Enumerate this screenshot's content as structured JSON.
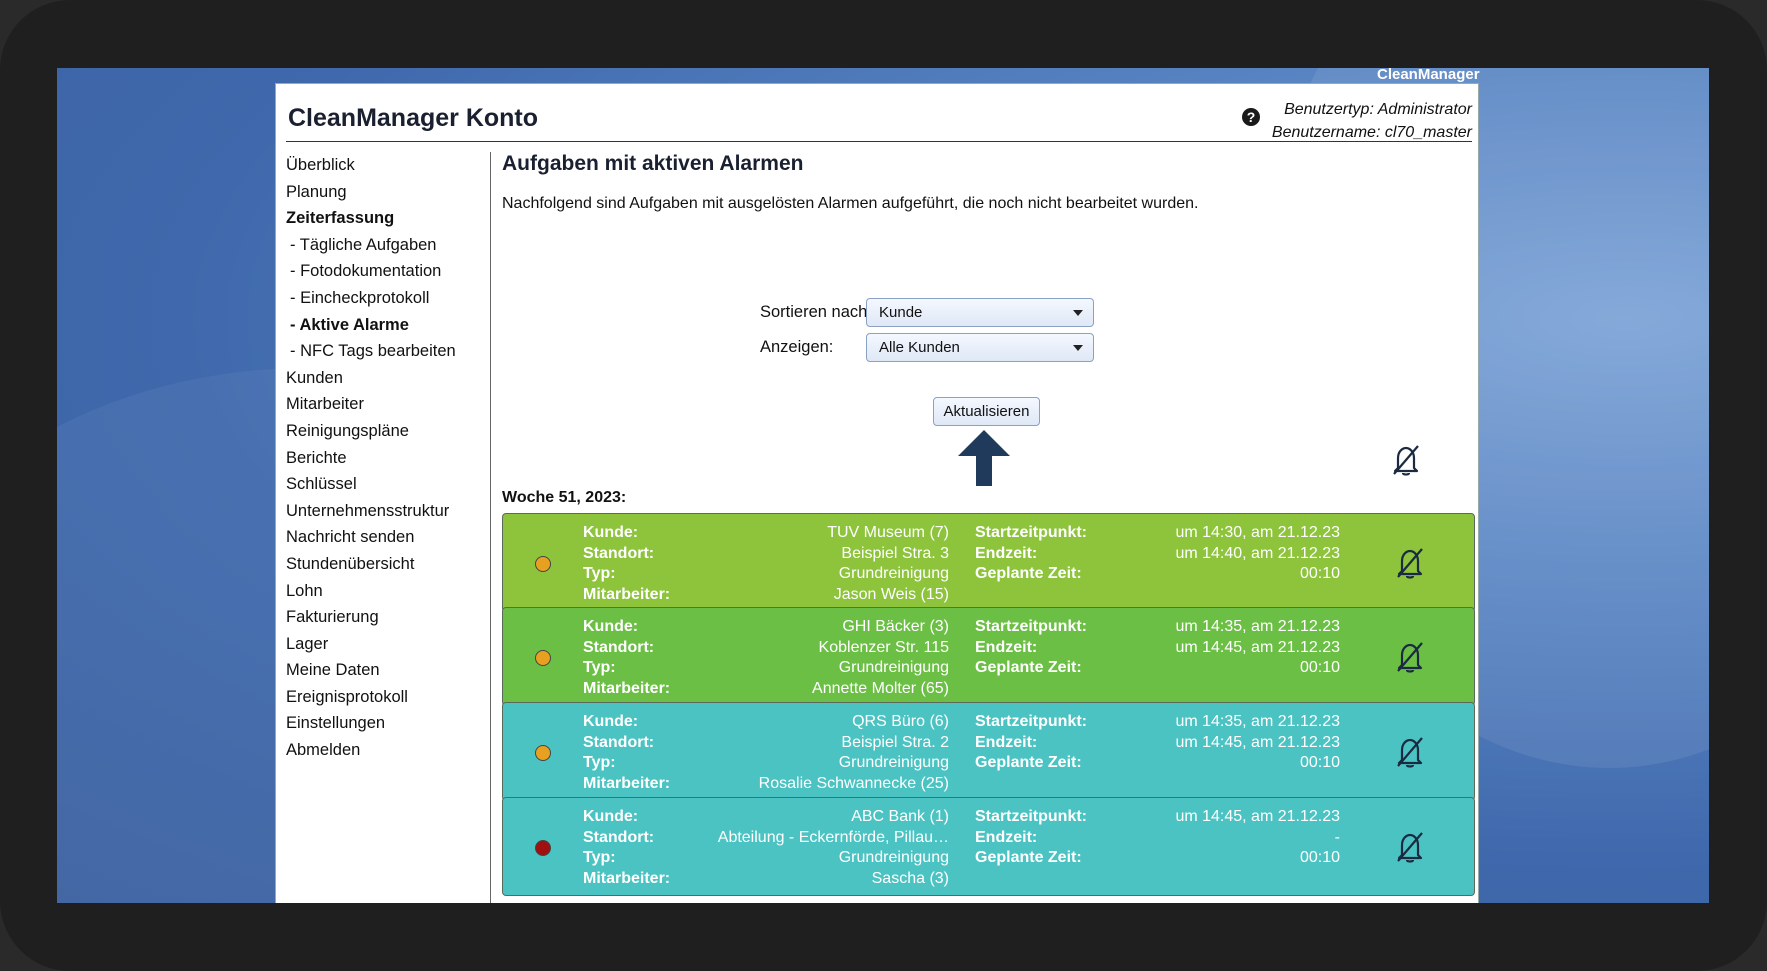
{
  "desktop": {
    "brand": "CleanManager"
  },
  "header": {
    "title": "CleanManager Konto",
    "user_type": "Benutzertyp: Administrator",
    "user_name": "Benutzername: cl70_master"
  },
  "sidebar": {
    "items": [
      {
        "label": "Überblick"
      },
      {
        "label": "Planung"
      },
      {
        "label": "Zeiterfassung"
      },
      {
        "label": "- Tägliche Aufgaben"
      },
      {
        "label": "- Fotodokumentation"
      },
      {
        "label": "- Eincheckprotokoll"
      },
      {
        "label": "- Aktive Alarme"
      },
      {
        "label": "- NFC Tags bearbeiten"
      },
      {
        "label": "Kunden"
      },
      {
        "label": "Mitarbeiter"
      },
      {
        "label": "Reinigungspläne"
      },
      {
        "label": "Berichte"
      },
      {
        "label": "Schlüssel"
      },
      {
        "label": "Unternehmensstruktur"
      },
      {
        "label": "Nachricht senden"
      },
      {
        "label": "Stundenübersicht"
      },
      {
        "label": "Lohn"
      },
      {
        "label": "Fakturierung"
      },
      {
        "label": "Lager"
      },
      {
        "label": "Meine Daten"
      },
      {
        "label": "Ereignisprotokoll"
      },
      {
        "label": "Einstellungen"
      },
      {
        "label": "Abmelden"
      }
    ]
  },
  "main": {
    "title": "Aufgaben mit aktiven Alarmen",
    "intro": "Nachfolgend sind Aufgaben mit ausgelösten Alarmen aufgeführt, die noch nicht bearbeitet wurden.",
    "sort_label": "Sortieren nach:",
    "sort_value": "Kunde",
    "show_label": "Anzeigen:",
    "show_value": "Alle Kunden",
    "refresh_label": "Aktualisieren",
    "week": "Woche 51, 2023:",
    "labels": {
      "kunde": "Kunde:",
      "standort": "Standort:",
      "typ": "Typ:",
      "mitarbeiter": "Mitarbeiter:",
      "start": "Startzeitpunkt:",
      "end": "Endzeit:",
      "planned": "Geplante Zeit:"
    },
    "alarms": [
      {
        "color": "#8dc43c",
        "dot": "#e8a020",
        "kunde": "TUV Museum (7)",
        "standort": "Beispiel Stra. 3",
        "typ": "Grundreinigung",
        "mitarbeiter": "Jason Weis (15)",
        "start": "um 14:30, am 21.12.23",
        "end": "um 14:40, am 21.12.23",
        "planned": "00:10"
      },
      {
        "color": "#6cbf45",
        "dot": "#e8a020",
        "kunde": "GHI Bäcker (3)",
        "standort": "Koblenzer Str. 115",
        "typ": "Grundreinigung",
        "mitarbeiter": "Annette Molter (65)",
        "start": "um 14:35, am 21.12.23",
        "end": "um 14:45, am 21.12.23",
        "planned": "00:10"
      },
      {
        "color": "#4cc3c3",
        "dot": "#e8a020",
        "kunde": "QRS Büro (6)",
        "standort": "Beispiel Stra. 2",
        "typ": "Grundreinigung",
        "mitarbeiter": "Rosalie Schwannecke (25)",
        "start": "um 14:35, am 21.12.23",
        "end": "um 14:45, am 21.12.23",
        "planned": "00:10"
      },
      {
        "color": "#4cc3c3",
        "dot": "#a01010",
        "kunde": "ABC Bank (1)",
        "standort": "Abteilung - Eckernförde, Pillau…",
        "typ": "Grundreinigung",
        "mitarbeiter": "Sascha (3)",
        "start": "um 14:45, am 21.12.23",
        "end": "-",
        "planned": "00:10"
      }
    ]
  }
}
